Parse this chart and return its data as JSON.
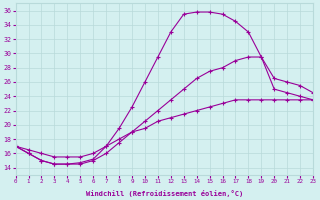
{
  "xlabel": "Windchill (Refroidissement éolien,°C)",
  "bg_color": "#d4f0f0",
  "line_color": "#990099",
  "grid_color": "#b8dada",
  "xlim": [
    0,
    23
  ],
  "ylim": [
    13,
    37
  ],
  "yticks": [
    14,
    16,
    18,
    20,
    22,
    24,
    26,
    28,
    30,
    32,
    34,
    36
  ],
  "xticks": [
    0,
    1,
    2,
    3,
    4,
    5,
    6,
    7,
    8,
    9,
    10,
    11,
    12,
    13,
    14,
    15,
    16,
    17,
    18,
    19,
    20,
    21,
    22,
    23
  ],
  "line1_x": [
    0,
    1,
    2,
    3,
    4,
    5,
    6,
    7,
    8,
    9,
    10,
    11,
    12,
    13,
    14,
    15,
    16,
    17,
    18,
    19,
    20,
    21,
    22,
    23
  ],
  "line1_y": [
    17.0,
    16.0,
    15.0,
    14.5,
    14.5,
    14.7,
    15.2,
    17.0,
    19.5,
    22.5,
    26.0,
    29.5,
    33.0,
    35.5,
    35.8,
    35.8,
    35.5,
    34.5,
    33.0,
    29.5,
    25.0,
    24.5,
    24.0,
    23.5
  ],
  "line2_x": [
    0,
    1,
    2,
    3,
    4,
    5,
    6,
    7,
    8,
    9,
    10,
    11,
    12,
    13,
    14,
    15,
    16,
    17,
    18,
    19,
    20,
    21,
    22,
    23
  ],
  "line2_y": [
    17.0,
    16.0,
    15.0,
    14.5,
    14.5,
    14.5,
    15.0,
    16.0,
    17.5,
    19.0,
    20.5,
    22.0,
    23.5,
    25.0,
    26.5,
    27.5,
    28.0,
    29.0,
    29.5,
    29.5,
    26.5,
    26.0,
    25.5,
    24.5
  ],
  "line3_x": [
    0,
    1,
    2,
    3,
    4,
    5,
    6,
    7,
    8,
    9,
    10,
    11,
    12,
    13,
    14,
    15,
    16,
    17,
    18,
    19,
    20,
    21,
    22,
    23
  ],
  "line3_y": [
    17.0,
    16.5,
    16.0,
    15.5,
    15.5,
    15.5,
    16.0,
    17.0,
    18.0,
    19.0,
    19.5,
    20.5,
    21.0,
    21.5,
    22.0,
    22.5,
    23.0,
    23.5,
    23.5,
    23.5,
    23.5,
    23.5,
    23.5,
    23.5
  ]
}
